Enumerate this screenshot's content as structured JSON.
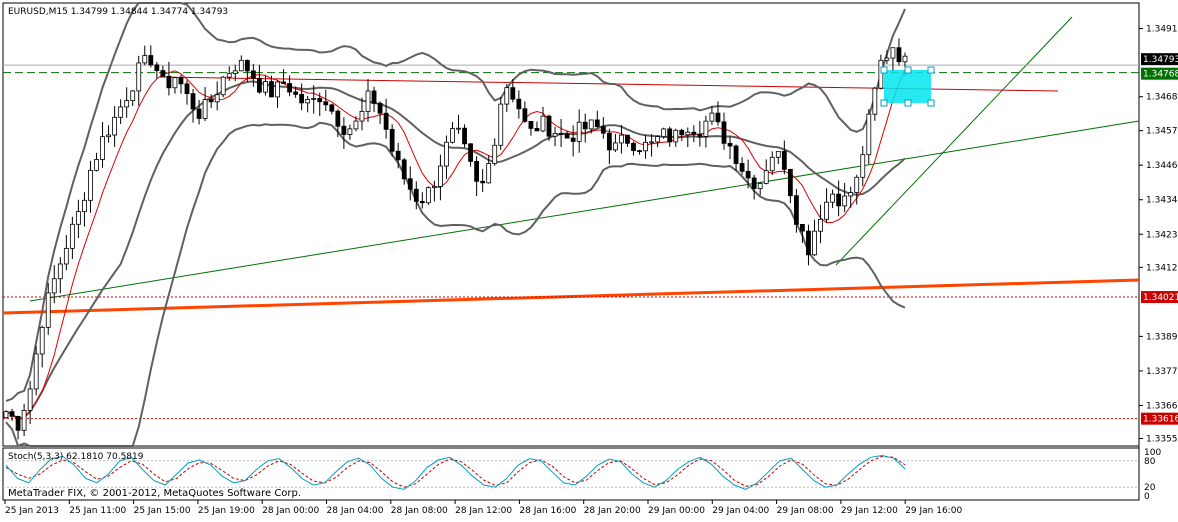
{
  "header": {
    "symbol_line": "EURUSD,M15  1.34799 1.34844 1.34774 1.34793"
  },
  "watermark": "MetaTrader FIX, © 2001-2012, MetaQuotes Software Corp.",
  "stoch": {
    "label": "Stoch(5,3,3) 62.1810 70.5819",
    "axis_labels": [
      "100",
      "80",
      "20",
      "0"
    ]
  },
  "price_tags": [
    {
      "text": "1.34793",
      "kind": "bid"
    },
    {
      "text": "1.34768",
      "kind": "hline-green"
    },
    {
      "text": "1.34021",
      "kind": "hline-red"
    },
    {
      "text": "1.33616",
      "kind": "hline-red"
    }
  ],
  "colors": {
    "background": "#ffffff",
    "candle_bull": "#ffffff",
    "candle_bear": "#000000",
    "bollinger": "#606060",
    "moving_average": "#dd0000",
    "trendline_green": "#007000",
    "support_orange": "#ff4500",
    "resistance_red": "#cc0000",
    "highlight_box": "#00e5ee",
    "stoch_main": "#00a0c0",
    "stoch_signal": "#cc0000"
  },
  "chart_data": {
    "type": "candlestick",
    "symbol": "EURUSD",
    "timeframe": "M15",
    "ohlc_last": {
      "open": 1.34799,
      "high": 1.34844,
      "low": 1.34774,
      "close": 1.34793
    },
    "y_ticks": [
      "1.34915",
      "1.34688",
      "1.34575",
      "1.34460",
      "1.34345",
      "1.34230",
      "1.34120",
      "1.33890",
      "1.33775",
      "1.33660",
      "1.33550"
    ],
    "ylim": [
      1.33525,
      1.35
    ],
    "x_ticks": [
      "25 Jan 2013",
      "25 Jan 11:00",
      "25 Jan 15:00",
      "25 Jan 19:00",
      "28 Jan 00:00",
      "28 Jan 04:00",
      "28 Jan 08:00",
      "28 Jan 12:00",
      "28 Jan 16:00",
      "28 Jan 20:00",
      "29 Jan 00:00",
      "29 Jan 04:00",
      "29 Jan 08:00",
      "29 Jan 12:00",
      "29 Jan 16:00"
    ],
    "horizontal_lines": [
      {
        "price": 1.34768,
        "style": "dashed",
        "color": "#007000"
      },
      {
        "price": 1.34021,
        "style": "dotted",
        "color": "#cc0000"
      },
      {
        "price": 1.33616,
        "style": "dotted",
        "color": "#cc0000"
      }
    ],
    "close_anchors": [
      1.3364,
      1.336,
      1.3372,
      1.3395,
      1.3408,
      1.342,
      1.343,
      1.3445,
      1.3455,
      1.3462,
      1.347,
      1.3478,
      1.3482,
      1.3472,
      1.3476,
      1.3468,
      1.3463,
      1.3468,
      1.3476,
      1.348,
      1.3478,
      1.3472,
      1.347,
      1.3474,
      1.3468,
      1.3466,
      1.347,
      1.3463,
      1.3458,
      1.346,
      1.347,
      1.3462,
      1.3448,
      1.344,
      1.3434,
      1.3438,
      1.345,
      1.3458,
      1.3448,
      1.3436,
      1.345,
      1.3474,
      1.3468,
      1.3456,
      1.346,
      1.3458,
      1.3455,
      1.3457,
      1.3459,
      1.3458,
      1.3451,
      1.3455,
      1.3453,
      1.3452,
      1.3456,
      1.3455,
      1.346,
      1.3458,
      1.3462,
      1.3456,
      1.345,
      1.3442,
      1.344,
      1.345,
      1.3448,
      1.343,
      1.3418,
      1.343,
      1.3437,
      1.3434,
      1.344,
      1.346,
      1.348,
      1.3486,
      1.348
    ],
    "stoch_main": [
      70,
      40,
      30,
      60,
      85,
      90,
      70,
      40,
      30,
      50,
      80,
      88,
      60,
      35,
      25,
      50,
      75,
      82,
      70,
      45,
      30,
      35,
      60,
      80,
      85,
      65,
      40,
      25,
      30,
      55,
      78,
      86,
      70,
      40,
      20,
      15,
      35,
      65,
      82,
      88,
      70,
      45,
      25,
      20,
      40,
      70,
      85,
      80,
      55,
      30,
      25,
      45,
      70,
      84,
      78,
      50,
      30,
      20,
      35,
      60,
      78,
      88,
      72,
      45,
      25,
      15,
      30,
      55,
      80,
      86,
      60,
      35,
      20,
      25,
      50,
      72,
      88,
      92,
      86,
      62
    ],
    "stoch_signal": [
      65,
      50,
      40,
      50,
      70,
      82,
      75,
      55,
      38,
      45,
      65,
      80,
      72,
      50,
      32,
      40,
      62,
      76,
      74,
      58,
      40,
      35,
      48,
      68,
      80,
      72,
      52,
      34,
      30,
      42,
      65,
      80,
      76,
      55,
      32,
      20,
      28,
      50,
      72,
      84,
      78,
      58,
      36,
      24,
      30,
      55,
      76,
      82,
      68,
      44,
      30,
      36,
      58,
      76,
      80,
      62,
      40,
      26,
      30,
      48,
      70,
      84,
      80,
      60,
      36,
      22,
      26,
      44,
      68,
      82,
      72,
      48,
      28,
      24,
      38,
      60,
      80,
      90,
      88,
      71
    ]
  }
}
